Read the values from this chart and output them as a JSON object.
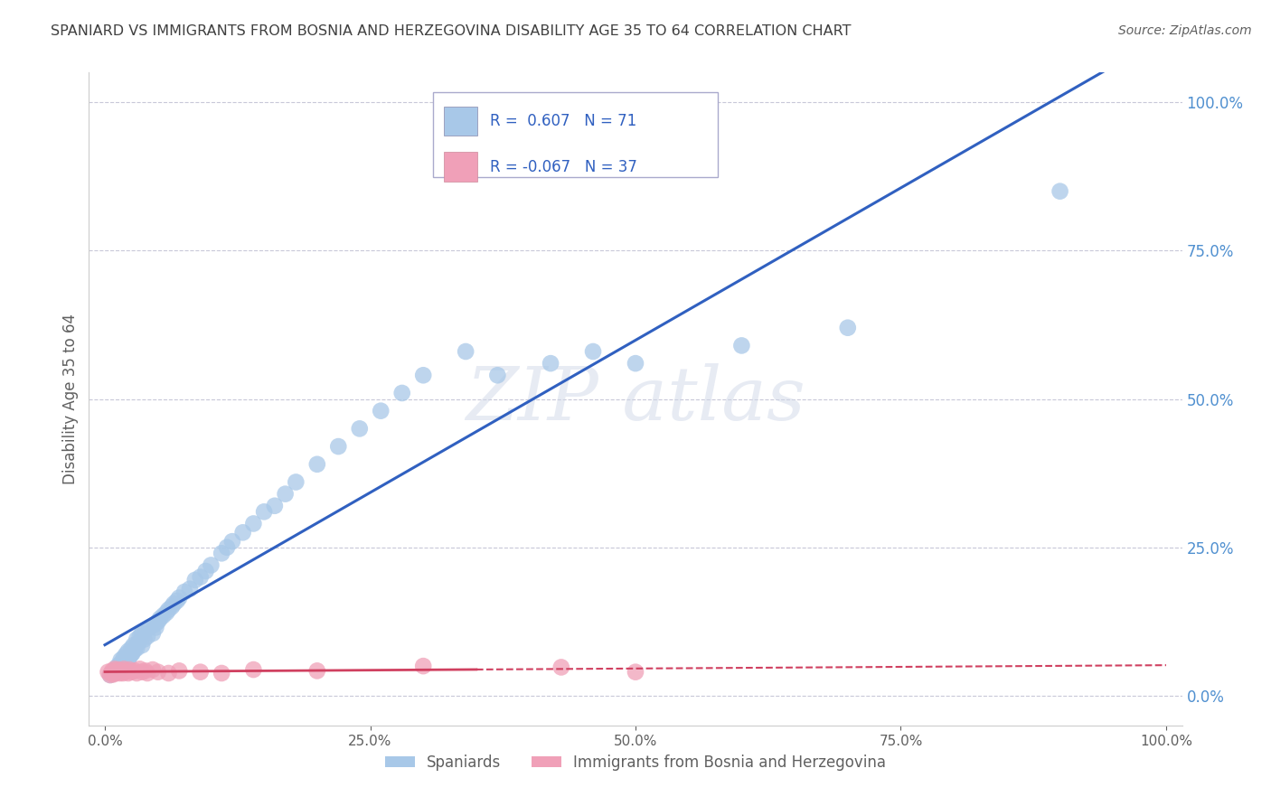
{
  "title": "SPANIARD VS IMMIGRANTS FROM BOSNIA AND HERZEGOVINA DISABILITY AGE 35 TO 64 CORRELATION CHART",
  "source": "Source: ZipAtlas.com",
  "ylabel": "Disability Age 35 to 64",
  "legend_label_1": "Spaniards",
  "legend_label_2": "Immigrants from Bosnia and Herzegovina",
  "r1": 0.607,
  "n1": 71,
  "r2": -0.067,
  "n2": 37,
  "color1": "#a8c8e8",
  "color2": "#f0a0b8",
  "line_color1": "#3060c0",
  "line_color2": "#d04060",
  "legend_text_color": "#3060c0",
  "title_color": "#404040",
  "axis_label_color": "#606060",
  "right_tick_color": "#5090d0",
  "background_color": "#ffffff",
  "grid_color": "#c8c8d8",
  "x_ticks": [
    0.0,
    0.25,
    0.5,
    0.75,
    1.0
  ],
  "x_tick_labels": [
    "0.0%",
    "25.0%",
    "50.0%",
    "75.0%",
    "100.0%"
  ],
  "y_ticks": [
    0.0,
    0.25,
    0.5,
    0.75,
    1.0
  ],
  "y_tick_labels": [
    "0.0%",
    "25.0%",
    "50.0%",
    "75.0%",
    "100.0%"
  ],
  "spaniard_x": [
    0.005,
    0.008,
    0.01,
    0.012,
    0.013,
    0.015,
    0.015,
    0.017,
    0.018,
    0.018,
    0.02,
    0.02,
    0.022,
    0.022,
    0.023,
    0.025,
    0.025,
    0.026,
    0.027,
    0.028,
    0.03,
    0.03,
    0.032,
    0.033,
    0.035,
    0.035,
    0.037,
    0.038,
    0.04,
    0.042,
    0.045,
    0.047,
    0.048,
    0.05,
    0.052,
    0.055,
    0.058,
    0.06,
    0.063,
    0.065,
    0.068,
    0.07,
    0.075,
    0.08,
    0.085,
    0.09,
    0.095,
    0.1,
    0.11,
    0.115,
    0.12,
    0.13,
    0.14,
    0.15,
    0.16,
    0.17,
    0.18,
    0.2,
    0.22,
    0.24,
    0.26,
    0.28,
    0.3,
    0.34,
    0.37,
    0.42,
    0.46,
    0.5,
    0.6,
    0.7,
    0.9
  ],
  "spaniard_y": [
    0.035,
    0.04,
    0.045,
    0.05,
    0.042,
    0.055,
    0.06,
    0.048,
    0.065,
    0.05,
    0.055,
    0.07,
    0.06,
    0.075,
    0.065,
    0.07,
    0.08,
    0.072,
    0.085,
    0.078,
    0.08,
    0.095,
    0.09,
    0.1,
    0.085,
    0.105,
    0.095,
    0.11,
    0.1,
    0.115,
    0.105,
    0.12,
    0.115,
    0.125,
    0.13,
    0.135,
    0.14,
    0.145,
    0.15,
    0.155,
    0.16,
    0.165,
    0.175,
    0.18,
    0.195,
    0.2,
    0.21,
    0.22,
    0.24,
    0.25,
    0.26,
    0.275,
    0.29,
    0.31,
    0.32,
    0.34,
    0.36,
    0.39,
    0.42,
    0.45,
    0.48,
    0.51,
    0.54,
    0.58,
    0.54,
    0.56,
    0.58,
    0.56,
    0.59,
    0.62,
    0.85
  ],
  "bosnian_x": [
    0.003,
    0.005,
    0.006,
    0.007,
    0.008,
    0.009,
    0.01,
    0.011,
    0.012,
    0.013,
    0.014,
    0.015,
    0.016,
    0.017,
    0.018,
    0.019,
    0.02,
    0.022,
    0.023,
    0.025,
    0.028,
    0.03,
    0.033,
    0.035,
    0.038,
    0.04,
    0.045,
    0.05,
    0.06,
    0.07,
    0.09,
    0.11,
    0.14,
    0.2,
    0.3,
    0.43,
    0.5
  ],
  "bosnian_y": [
    0.04,
    0.035,
    0.038,
    0.042,
    0.036,
    0.045,
    0.038,
    0.042,
    0.04,
    0.044,
    0.038,
    0.042,
    0.04,
    0.038,
    0.045,
    0.04,
    0.042,
    0.038,
    0.044,
    0.04,
    0.042,
    0.038,
    0.045,
    0.04,
    0.042,
    0.038,
    0.044,
    0.04,
    0.038,
    0.042,
    0.04,
    0.038,
    0.044,
    0.042,
    0.05,
    0.048,
    0.04
  ]
}
